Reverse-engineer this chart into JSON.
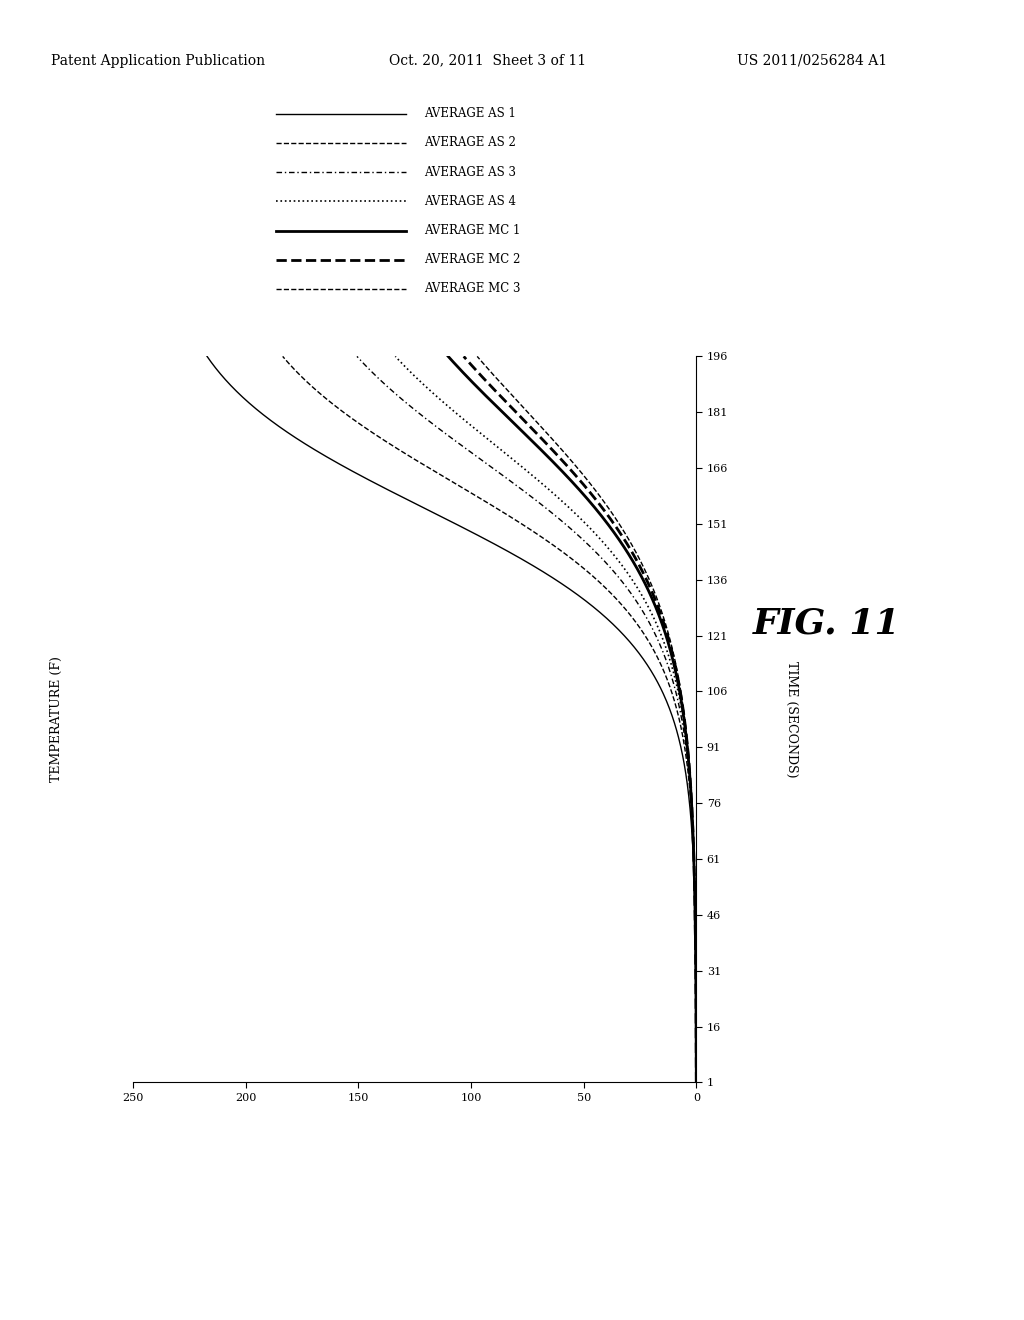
{
  "header_left": "Patent Application Publication",
  "header_mid": "Oct. 20, 2011  Sheet 3 of 11",
  "header_right": "US 2011/0256284 A1",
  "fig_label": "FIG. 11",
  "time_label": "TIME (SECONDS)",
  "temp_label": "TEMPERATURE (F)",
  "time_range": [
    1,
    196
  ],
  "temp_range": [
    0,
    250
  ],
  "time_ticks": [
    1,
    16,
    31,
    46,
    61,
    76,
    91,
    106,
    121,
    136,
    151,
    166,
    181,
    196
  ],
  "temp_ticks": [
    0,
    50,
    100,
    150,
    200,
    250
  ],
  "legend_entries": [
    {
      "label": "AVERAGE AS 1",
      "linestyle": "solid",
      "linewidth": 1.0
    },
    {
      "label": "AVERAGE AS 2",
      "linestyle": "dashed",
      "linewidth": 1.0
    },
    {
      "label": "AVERAGE AS 3",
      "linestyle": "dashdot",
      "linewidth": 1.0
    },
    {
      "label": "AVERAGE AS 4",
      "linestyle": "dotted",
      "linewidth": 1.2
    },
    {
      "label": "AVERAGE MC 1",
      "linestyle": "solid",
      "linewidth": 2.0
    },
    {
      "label": "AVERAGE MC 2",
      "linestyle": "dashed",
      "linewidth": 2.0
    },
    {
      "label": "AVERAGE MC 3",
      "linestyle": "dashed",
      "linewidth": 1.0
    }
  ],
  "background_color": "#ffffff",
  "line_color": "#000000",
  "as1_params": {
    "t_mid": 155,
    "k": 0.055,
    "max_temp": 240
  },
  "as2_params": {
    "t_mid": 162,
    "k": 0.052,
    "max_temp": 215
  },
  "as3_params": {
    "t_mid": 168,
    "k": 0.048,
    "max_temp": 190
  },
  "as4_params": {
    "t_mid": 172,
    "k": 0.046,
    "max_temp": 178
  },
  "mc1_params": {
    "t_mid": 178,
    "k": 0.042,
    "max_temp": 162
  },
  "mc2_params": {
    "t_mid": 180,
    "k": 0.041,
    "max_temp": 157
  },
  "mc3_params": {
    "t_mid": 182,
    "k": 0.04,
    "max_temp": 153
  }
}
